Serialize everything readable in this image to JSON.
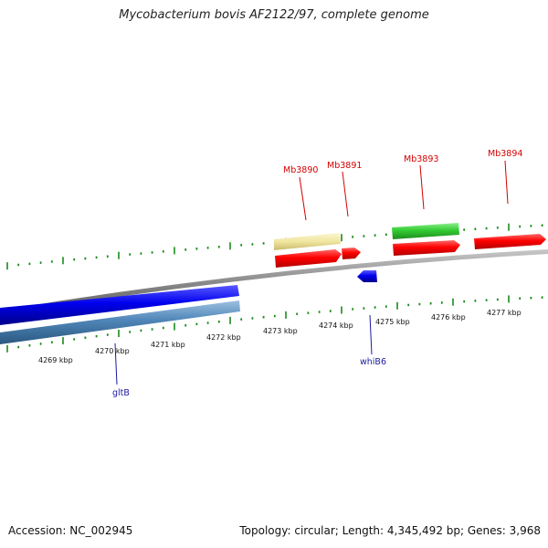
{
  "header": {
    "title": "Mycobacterium bovis AF2122/97, complete genome"
  },
  "footer": {
    "accession": "Accession: NC_002945",
    "summary": "Topology: circular; Length: 4,345,492 bp; Genes: 3,968"
  },
  "ruler": {
    "unit": "kbp",
    "labels": [
      "4269 kbp",
      "4270 kbp",
      "4271 kbp",
      "4272 kbp",
      "4273 kbp",
      "4274 kbp",
      "4275 kbp",
      "4276 kbp",
      "4277 kbp"
    ]
  },
  "genes": {
    "mb3890": "Mb3890",
    "mb3891": "Mb3891",
    "mb3893": "Mb3893",
    "mb3894": "Mb3894",
    "gltB": "gltB",
    "whiB6": "whiB6"
  },
  "colors": {
    "forward_cds": "#ff0000",
    "reverse_cds": "#0000ee",
    "rrna_like": "#f0e6a0",
    "green_feature": "#33cc33",
    "steel_feature": "#4f86b8",
    "backbone": "#888888",
    "tick": "#1a8a1a"
  }
}
